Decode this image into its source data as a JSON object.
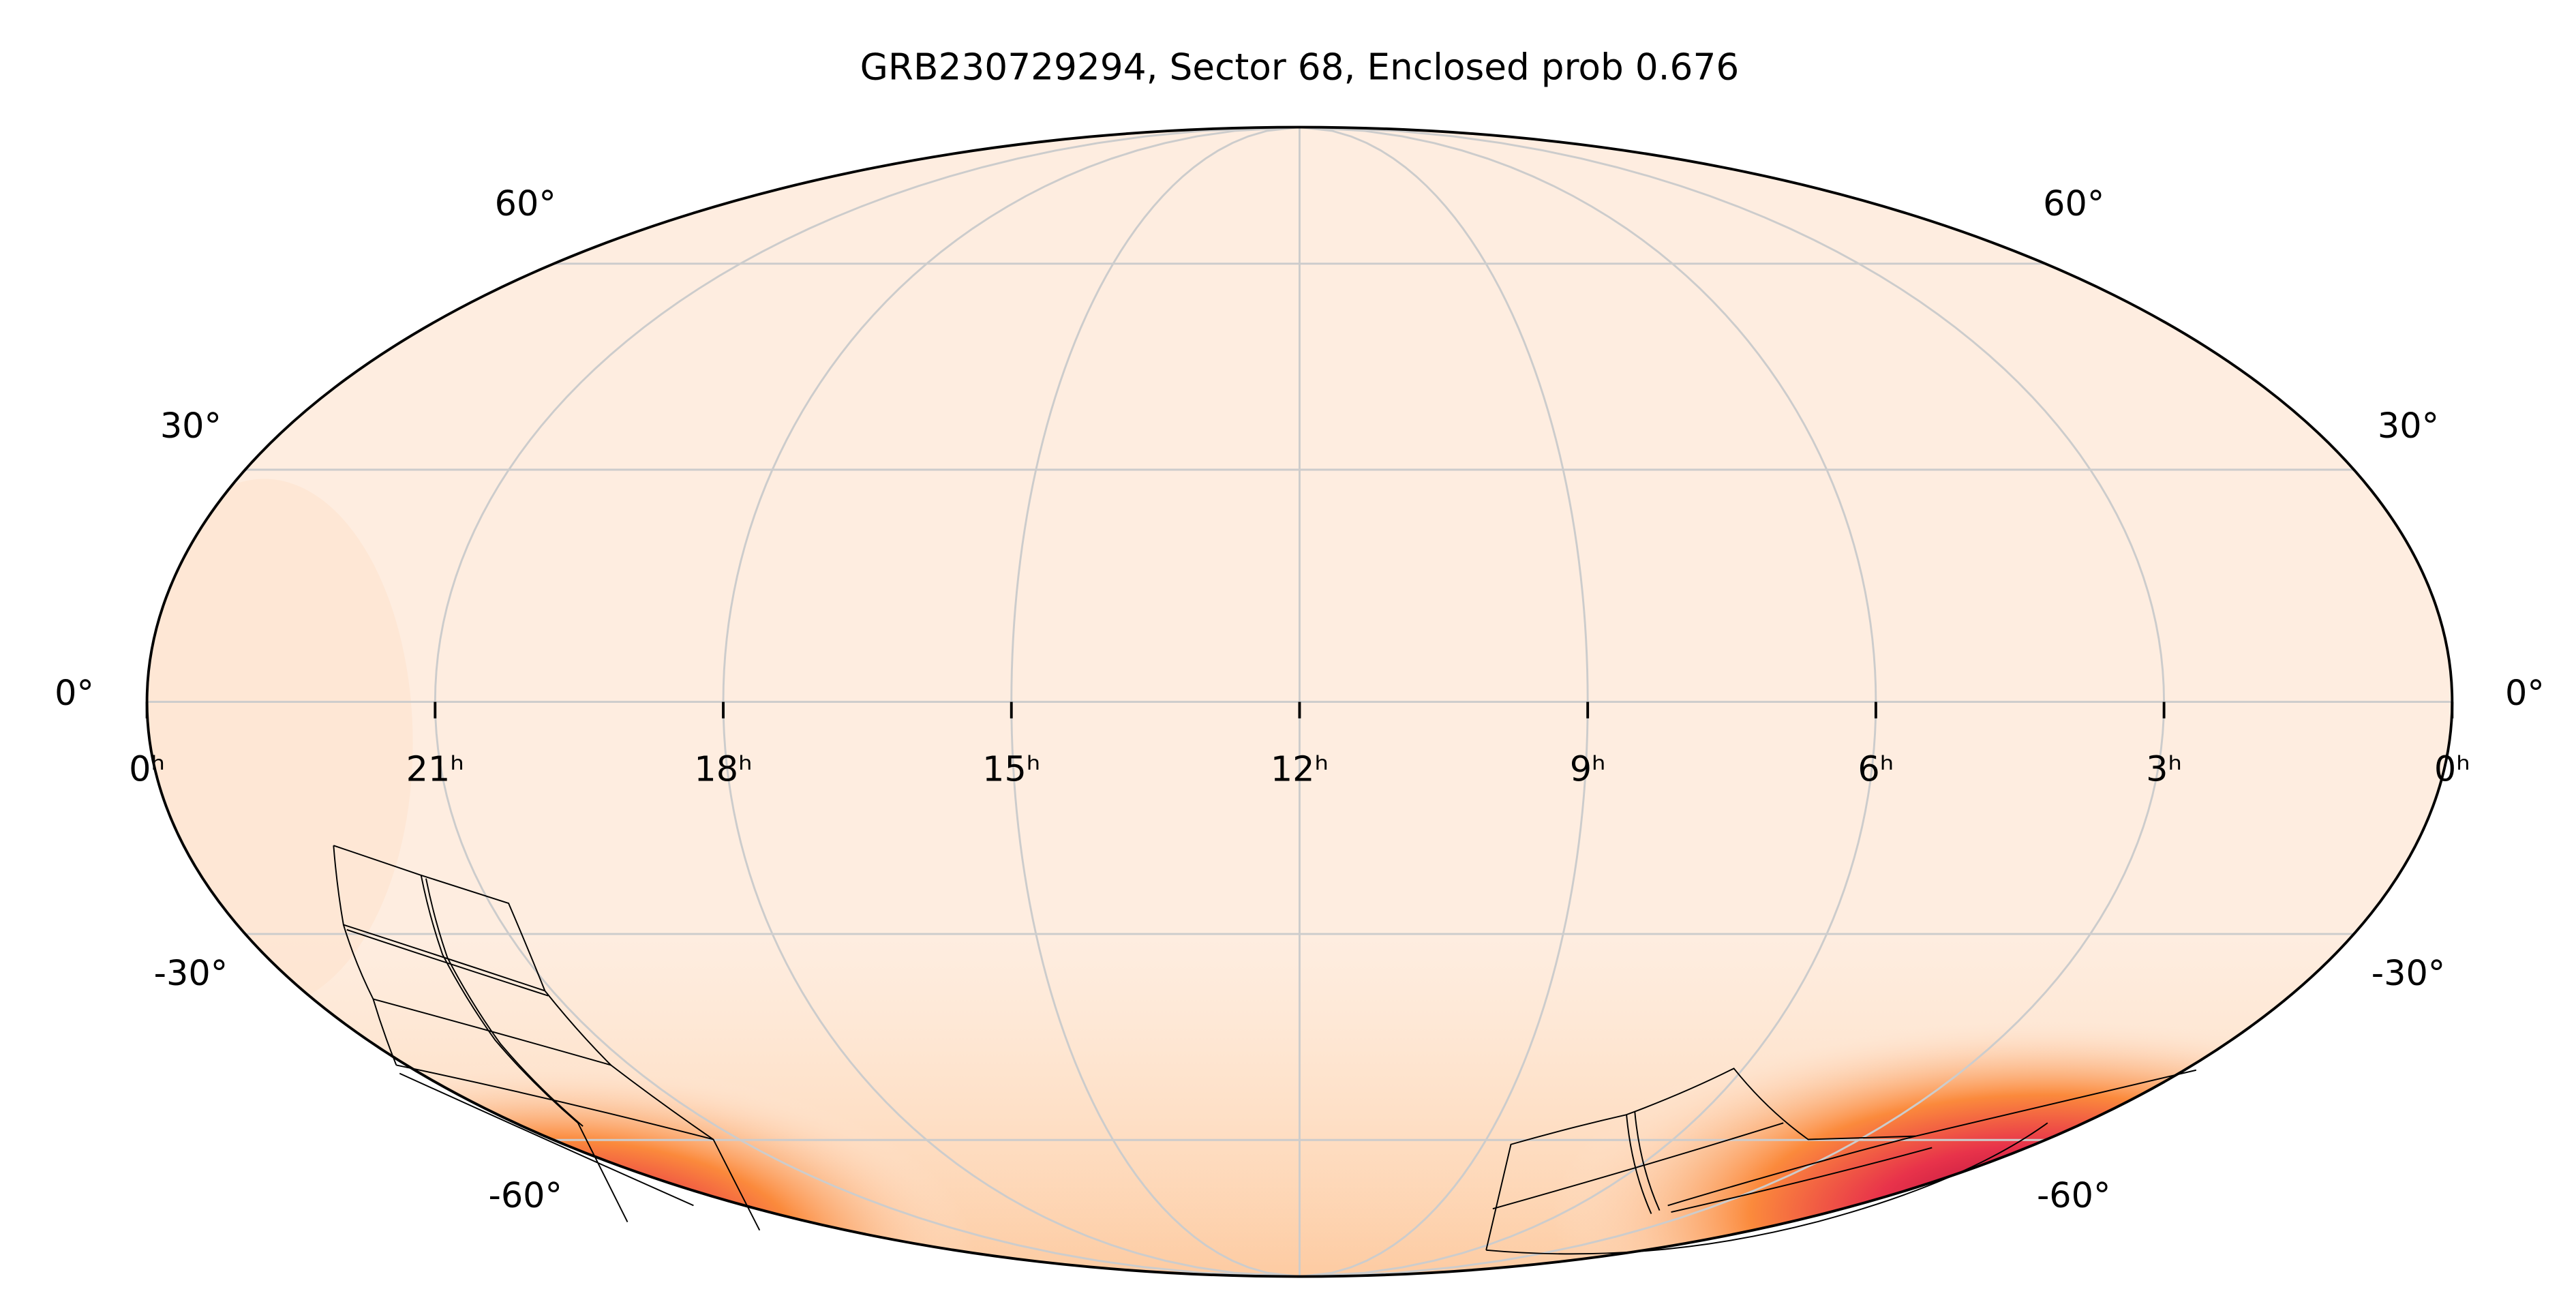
{
  "title": "GRB230729294, Sector 68, Enclosed prob 0.676",
  "ra_ticks": [
    {
      "value": 24,
      "label": "0ʰ"
    },
    {
      "value": 21,
      "label": "21ʰ"
    },
    {
      "value": 18,
      "label": "18ʰ"
    },
    {
      "value": 15,
      "label": "15ʰ"
    },
    {
      "value": 12,
      "label": "12ʰ"
    },
    {
      "value": 9,
      "label": "9ʰ"
    },
    {
      "value": 6,
      "label": "6ʰ"
    },
    {
      "value": 3,
      "label": "3ʰ"
    },
    {
      "value": 0,
      "label": "0ʰ"
    }
  ],
  "dec_ticks": [
    {
      "value": 60,
      "label": "60°"
    },
    {
      "value": 30,
      "label": "30°"
    },
    {
      "value": 0,
      "label": "0°"
    },
    {
      "value": -30,
      "label": "-30°"
    },
    {
      "value": -60,
      "label": "-60°"
    }
  ]
}
